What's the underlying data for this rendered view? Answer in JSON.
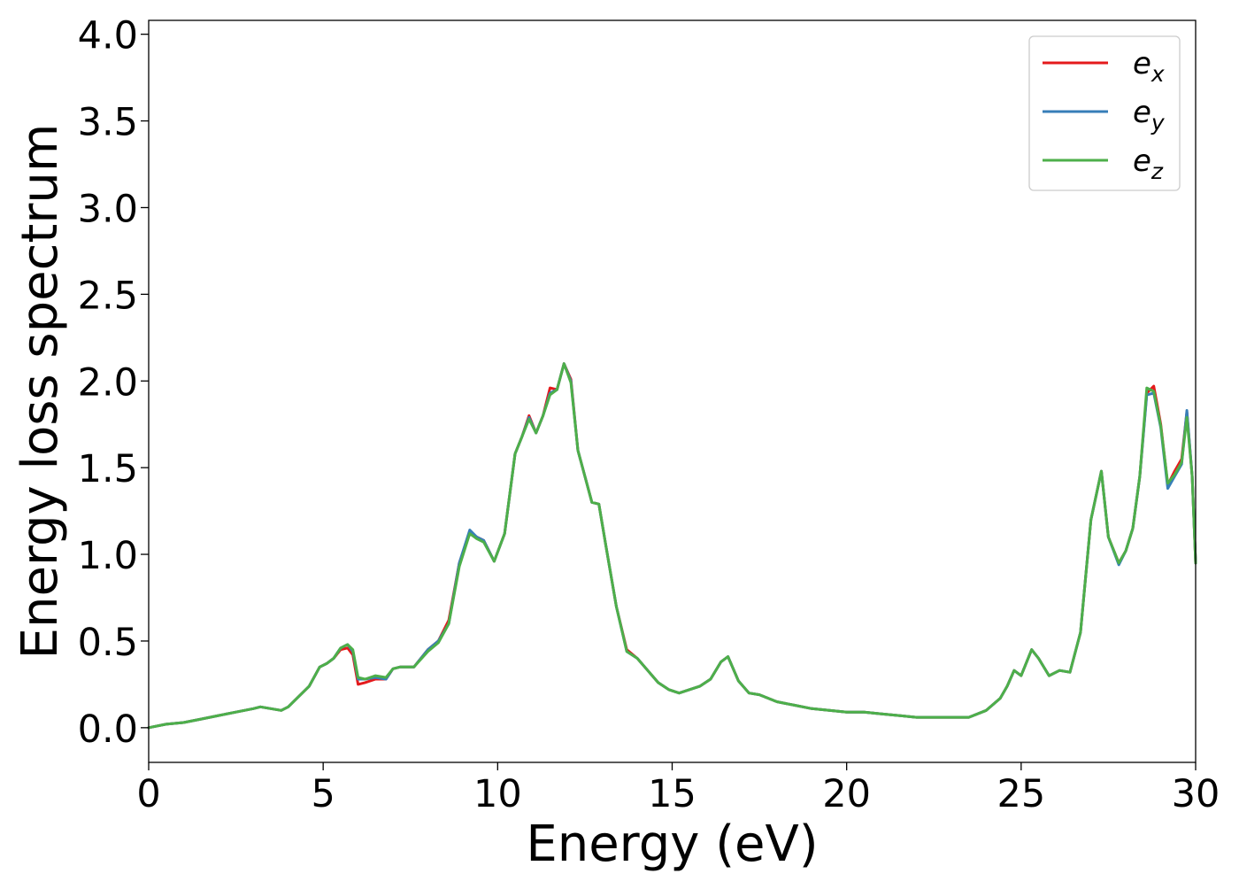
{
  "chart_data": {
    "type": "line",
    "title": "",
    "xlabel": "Energy (eV)",
    "ylabel": "Energy loss spectrum",
    "xlim": [
      0,
      30
    ],
    "ylim": [
      -0.2,
      4.08
    ],
    "xticks": [
      0,
      5,
      10,
      15,
      20,
      25,
      30
    ],
    "xtick_labels": [
      "0",
      "5",
      "10",
      "15",
      "20",
      "25",
      "30"
    ],
    "yticks": [
      0.0,
      0.5,
      1.0,
      1.5,
      2.0,
      2.5,
      3.0,
      3.5,
      4.0
    ],
    "ytick_labels": [
      "0.0",
      "0.5",
      "1.0",
      "1.5",
      "2.0",
      "2.5",
      "3.0",
      "3.5",
      "4.0"
    ],
    "grid": false,
    "legend_position": "top-right",
    "x": [
      0,
      0.5,
      1,
      1.5,
      2,
      2.5,
      3,
      3.2,
      3.5,
      3.8,
      4,
      4.3,
      4.6,
      4.9,
      5.1,
      5.3,
      5.5,
      5.7,
      5.85,
      6,
      6.2,
      6.5,
      6.8,
      7,
      7.2,
      7.6,
      8,
      8.3,
      8.6,
      8.9,
      9.2,
      9.4,
      9.6,
      9.9,
      10.2,
      10.5,
      10.7,
      10.9,
      11.1,
      11.3,
      11.5,
      11.7,
      11.9,
      12.1,
      12.3,
      12.5,
      12.7,
      12.9,
      13.1,
      13.4,
      13.7,
      14,
      14.3,
      14.6,
      14.9,
      15.2,
      15.5,
      15.8,
      16.1,
      16.4,
      16.6,
      16.9,
      17.2,
      17.5,
      18,
      18.5,
      19,
      19.5,
      20,
      20.5,
      21,
      21.5,
      22,
      22.5,
      23,
      23.5,
      24,
      24.4,
      24.6,
      24.8,
      25,
      25.3,
      25.5,
      25.8,
      26.1,
      26.4,
      26.7,
      27,
      27.3,
      27.5,
      27.8,
      28,
      28.2,
      28.4,
      28.6,
      28.8,
      29,
      29.2,
      29.4,
      29.6,
      29.75,
      29.9,
      30
    ],
    "series": [
      {
        "name": "e_x",
        "label_base": "e",
        "label_sub": "x",
        "color": "#e41a1c",
        "values": [
          0,
          0.02,
          0.03,
          0.05,
          0.07,
          0.09,
          0.11,
          0.12,
          0.11,
          0.1,
          0.12,
          0.18,
          0.24,
          0.35,
          0.37,
          0.4,
          0.45,
          0.46,
          0.42,
          0.25,
          0.26,
          0.28,
          0.28,
          0.34,
          0.35,
          0.35,
          0.45,
          0.5,
          0.62,
          0.95,
          1.13,
          1.1,
          1.08,
          0.96,
          1.12,
          1.58,
          1.68,
          1.8,
          1.7,
          1.8,
          1.96,
          1.95,
          2.1,
          2.01,
          1.6,
          1.45,
          1.3,
          1.29,
          1.05,
          0.7,
          0.45,
          0.4,
          0.33,
          0.26,
          0.22,
          0.2,
          0.22,
          0.24,
          0.28,
          0.38,
          0.41,
          0.27,
          0.2,
          0.19,
          0.15,
          0.13,
          0.11,
          0.1,
          0.09,
          0.09,
          0.08,
          0.07,
          0.06,
          0.06,
          0.06,
          0.06,
          0.1,
          0.17,
          0.24,
          0.33,
          0.3,
          0.45,
          0.4,
          0.3,
          0.33,
          0.32,
          0.55,
          1.2,
          1.48,
          1.1,
          0.95,
          1.02,
          1.15,
          1.45,
          1.93,
          1.97,
          1.75,
          1.4,
          1.48,
          1.55,
          1.82,
          1.45,
          0.95
        ]
      },
      {
        "name": "e_y",
        "label_base": "e",
        "label_sub": "y",
        "color": "#377eb8",
        "values": [
          0,
          0.02,
          0.03,
          0.05,
          0.07,
          0.09,
          0.11,
          0.12,
          0.11,
          0.1,
          0.12,
          0.18,
          0.24,
          0.35,
          0.37,
          0.4,
          0.46,
          0.48,
          0.44,
          0.28,
          0.28,
          0.29,
          0.28,
          0.34,
          0.35,
          0.35,
          0.45,
          0.5,
          0.6,
          0.95,
          1.14,
          1.1,
          1.08,
          0.96,
          1.12,
          1.58,
          1.68,
          1.79,
          1.7,
          1.8,
          1.93,
          1.95,
          2.1,
          2.0,
          1.6,
          1.45,
          1.3,
          1.29,
          1.05,
          0.7,
          0.44,
          0.4,
          0.33,
          0.26,
          0.22,
          0.2,
          0.22,
          0.24,
          0.28,
          0.38,
          0.41,
          0.27,
          0.2,
          0.19,
          0.15,
          0.13,
          0.11,
          0.1,
          0.09,
          0.09,
          0.08,
          0.07,
          0.06,
          0.06,
          0.06,
          0.06,
          0.1,
          0.17,
          0.24,
          0.33,
          0.3,
          0.45,
          0.4,
          0.3,
          0.33,
          0.32,
          0.55,
          1.2,
          1.48,
          1.1,
          0.94,
          1.02,
          1.15,
          1.45,
          1.92,
          1.93,
          1.73,
          1.38,
          1.45,
          1.52,
          1.83,
          1.45,
          0.95
        ]
      },
      {
        "name": "e_z",
        "label_base": "e",
        "label_sub": "z",
        "color": "#4daf4a",
        "values": [
          0,
          0.02,
          0.03,
          0.05,
          0.07,
          0.09,
          0.11,
          0.12,
          0.11,
          0.1,
          0.12,
          0.18,
          0.24,
          0.35,
          0.37,
          0.4,
          0.46,
          0.48,
          0.45,
          0.29,
          0.28,
          0.3,
          0.29,
          0.34,
          0.35,
          0.35,
          0.44,
          0.49,
          0.6,
          0.93,
          1.12,
          1.09,
          1.07,
          0.96,
          1.12,
          1.58,
          1.68,
          1.78,
          1.7,
          1.8,
          1.92,
          1.95,
          2.1,
          1.99,
          1.6,
          1.45,
          1.3,
          1.29,
          1.05,
          0.7,
          0.44,
          0.4,
          0.33,
          0.26,
          0.22,
          0.2,
          0.22,
          0.24,
          0.28,
          0.38,
          0.41,
          0.27,
          0.2,
          0.19,
          0.15,
          0.13,
          0.11,
          0.1,
          0.09,
          0.09,
          0.08,
          0.07,
          0.06,
          0.06,
          0.06,
          0.06,
          0.1,
          0.17,
          0.24,
          0.33,
          0.3,
          0.45,
          0.4,
          0.3,
          0.33,
          0.32,
          0.55,
          1.2,
          1.48,
          1.1,
          0.95,
          1.02,
          1.15,
          1.45,
          1.96,
          1.94,
          1.74,
          1.41,
          1.46,
          1.53,
          1.79,
          1.45,
          0.95
        ]
      }
    ]
  }
}
